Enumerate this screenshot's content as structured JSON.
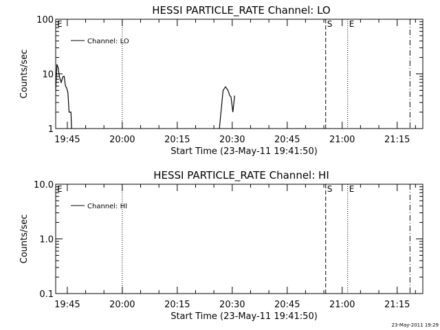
{
  "footer_timestamp": "23-May-2011 19:29",
  "chart_data": [
    {
      "type": "line",
      "title": "HESSI PARTICLE_RATE Channel: LO",
      "xlabel": "Start Time (23-May-11 19:41:50)",
      "ylabel": "Counts/sec",
      "yscale": "log",
      "ylim": [
        1,
        100
      ],
      "xlim": [
        "19:41:50",
        "21:22:00"
      ],
      "x_ticks": [
        "19:45",
        "20:00",
        "20:15",
        "20:30",
        "20:45",
        "21:00",
        "21:15"
      ],
      "y_ticks": [
        "1",
        "10",
        "100"
      ],
      "legend": {
        "placement": "top-left",
        "entries": [
          "Channel: LO"
        ]
      },
      "markers": [
        {
          "label": "E",
          "time": "19:41:50",
          "style": "dotted"
        },
        {
          "label": "",
          "time": "20:00:00",
          "style": "dotted"
        },
        {
          "label": "S",
          "time": "20:55:30",
          "style": "dashed"
        },
        {
          "label": "E",
          "time": "21:01:30",
          "style": "dotted"
        },
        {
          "label": "",
          "time": "21:18:30",
          "style": "dashdot"
        }
      ],
      "series": [
        {
          "segments": [
            [
              [
                "19:41:50",
                5
              ],
              [
                "19:42:10",
                15
              ],
              [
                "19:42:30",
                13
              ],
              [
                "19:42:50",
                9
              ],
              [
                "19:43:20",
                7
              ],
              [
                "19:43:50",
                9
              ],
              [
                "19:44:10",
                9
              ],
              [
                "19:44:30",
                6
              ],
              [
                "19:44:50",
                5.5
              ],
              [
                "19:45:10",
                4.5
              ],
              [
                "19:45:30",
                2
              ],
              [
                "19:46:00",
                2
              ],
              [
                "19:46:10",
                1
              ]
            ],
            [
              [
                "20:26:30",
                1
              ],
              [
                "20:27:30",
                5
              ],
              [
                "20:28:10",
                5.8
              ],
              [
                "20:28:50",
                5
              ],
              [
                "20:29:20",
                4
              ],
              [
                "20:29:40",
                3.8
              ],
              [
                "20:30:10",
                2
              ],
              [
                "20:30:40",
                4
              ]
            ]
          ]
        }
      ]
    },
    {
      "type": "line",
      "title": "HESSI PARTICLE_RATE Channel: HI",
      "xlabel": "Start Time (23-May-11 19:41:50)",
      "ylabel": "Counts/sec",
      "yscale": "log",
      "ylim": [
        0.1,
        10
      ],
      "xlim": [
        "19:41:50",
        "21:22:00"
      ],
      "x_ticks": [
        "19:45",
        "20:00",
        "20:15",
        "20:30",
        "20:45",
        "21:00",
        "21:15"
      ],
      "y_ticks": [
        "0.1",
        "1.0",
        "10.0"
      ],
      "legend": {
        "placement": "top-left",
        "entries": [
          "Channel: HI"
        ]
      },
      "markers": [
        {
          "label": "E",
          "time": "19:41:50",
          "style": "dotted"
        },
        {
          "label": "",
          "time": "20:00:00",
          "style": "dotted"
        },
        {
          "label": "S",
          "time": "20:55:30",
          "style": "dashed"
        },
        {
          "label": "E",
          "time": "21:01:30",
          "style": "dotted"
        },
        {
          "label": "",
          "time": "21:18:30",
          "style": "dashdot"
        }
      ],
      "series": [
        {
          "segments": []
        }
      ]
    }
  ]
}
